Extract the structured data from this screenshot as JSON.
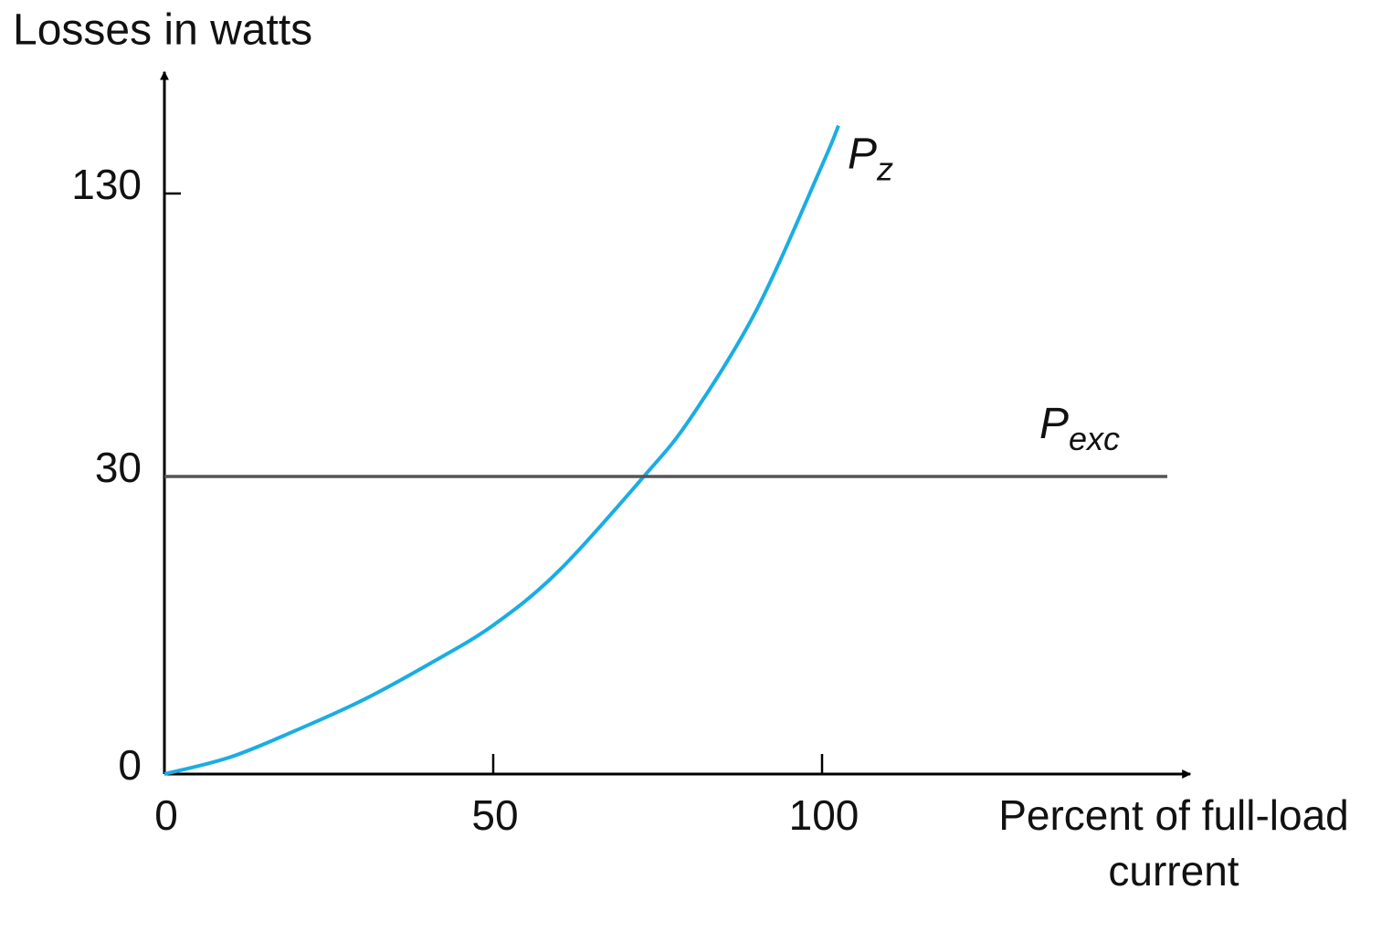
{
  "chart_data": {
    "type": "line",
    "y_label": "Losses in watts",
    "x_label_lines": [
      "Percent of full-load",
      "current"
    ],
    "xlim": [
      0,
      156
    ],
    "xticks": [
      0,
      50,
      100
    ],
    "ylim": [
      0,
      173
    ],
    "yticks": [
      0,
      30,
      130
    ],
    "series": [
      {
        "label": "P",
        "label_subscript": "z",
        "color": "#1aade4",
        "x": [
          0,
          10,
          20,
          30,
          40,
          50,
          60,
          72.9,
          80,
          90,
          100,
          102.5
        ],
        "values": [
          0,
          1.7,
          4.4,
          7.4,
          11,
          15,
          20.5,
          30,
          50.6,
          88.7,
          140,
          154
        ]
      },
      {
        "label": "P",
        "label_subscript": "exc",
        "color": "#555555",
        "x": [
          0,
          152.5
        ],
        "values": [
          30,
          30
        ]
      }
    ]
  }
}
